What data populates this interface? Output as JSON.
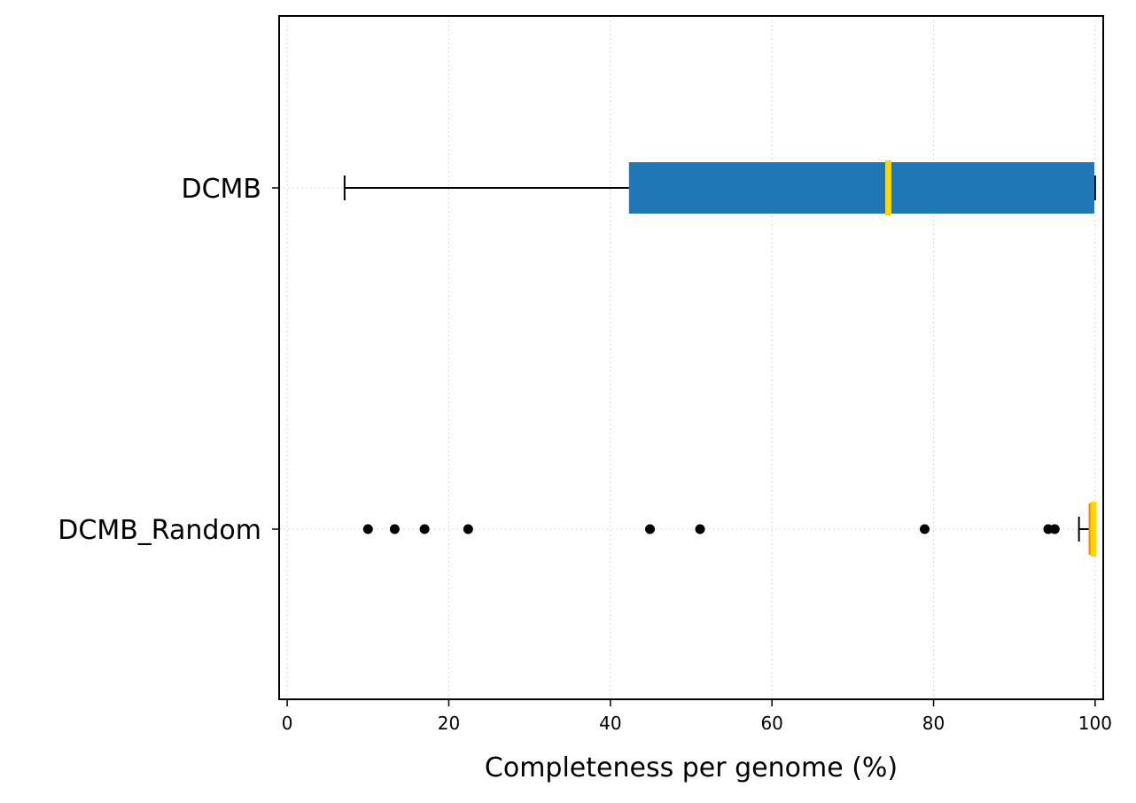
{
  "chart_data": {
    "type": "boxplot",
    "orientation": "horizontal",
    "title": "",
    "xlabel": "Completeness per genome (%)",
    "ylabel": "",
    "xlim": [
      -1,
      101
    ],
    "xticks": [
      0,
      20,
      40,
      60,
      80,
      100
    ],
    "grid": true,
    "legend": "none",
    "series": [
      {
        "name": "DCMB",
        "whisker_low": 7.1,
        "q1": 42.3,
        "median": 74.4,
        "q3": 99.9,
        "whisker_high": 100,
        "outliers": [],
        "box_color": "#1f77b4",
        "median_color": "#ffd700"
      },
      {
        "name": "DCMB_Random",
        "whisker_low": 98.0,
        "q1": 99.2,
        "median": 99.8,
        "q3": 100,
        "whisker_high": 100,
        "outliers": [
          10.0,
          13.3,
          17.0,
          22.4,
          44.9,
          51.1,
          78.9,
          94.2,
          95.0
        ],
        "box_color": "#ff7f0e",
        "median_color": "#ffd700"
      }
    ]
  }
}
